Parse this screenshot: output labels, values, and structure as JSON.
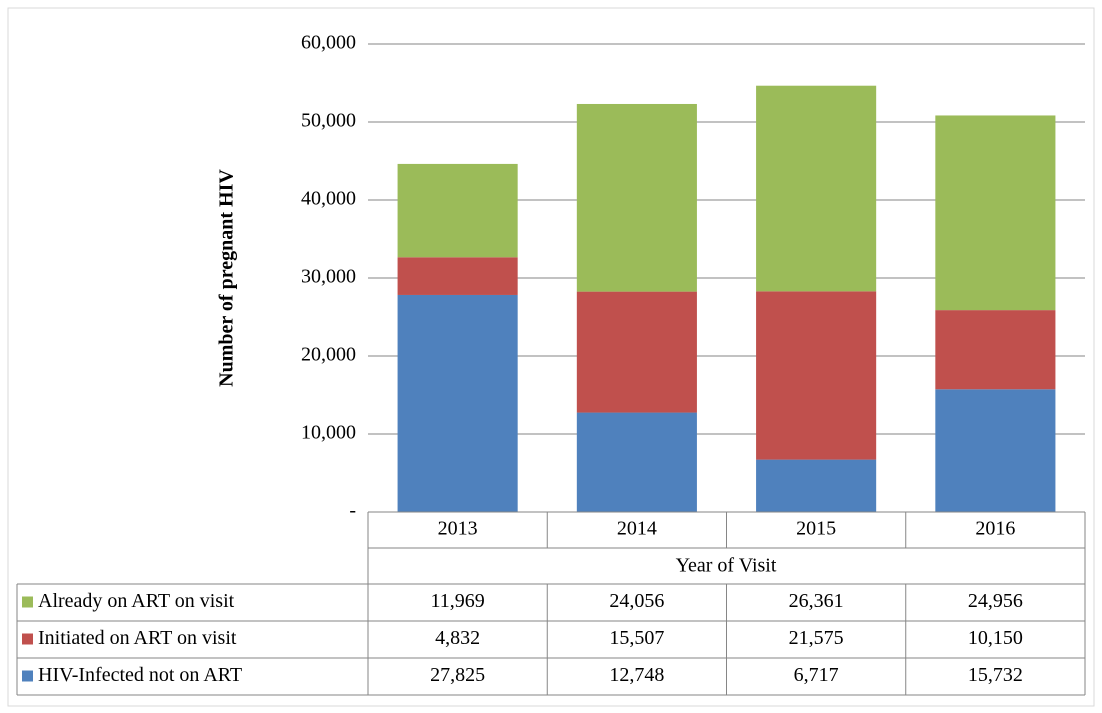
{
  "chart_data": {
    "type": "stacked_bar",
    "y_label": "Number of pregnant HIV",
    "x_label": "Year of Visit",
    "categories": [
      "2013",
      "2014",
      "2015",
      "2016"
    ],
    "series": [
      {
        "name": "HIV-Infected not on ART",
        "color": "#4f81bd",
        "values": [
          27825,
          12748,
          6717,
          15732
        ],
        "value_labels": [
          "27,825",
          "12,748",
          "6,717",
          "15,732"
        ]
      },
      {
        "name": "Initiated on ART on visit",
        "color": "#c0504d",
        "values": [
          4832,
          15507,
          21575,
          10150
        ],
        "value_labels": [
          "4,832",
          "15,507",
          "21,575",
          "10,150"
        ]
      },
      {
        "name": "Already on ART on visit",
        "color": "#9bbb59",
        "values": [
          11969,
          24056,
          26361,
          24956
        ],
        "value_labels": [
          "11,969",
          "24,056",
          "26,361",
          "24,956"
        ]
      }
    ],
    "ylim": [
      0,
      60000
    ],
    "yticks": [
      {
        "value": 0,
        "label": "-"
      },
      {
        "value": 10000,
        "label": "10,000"
      },
      {
        "value": 20000,
        "label": "20,000"
      },
      {
        "value": 30000,
        "label": "30,000"
      },
      {
        "value": 40000,
        "label": "40,000"
      },
      {
        "value": 50000,
        "label": "50,000"
      },
      {
        "value": 60000,
        "label": "60,000"
      }
    ],
    "grid": true
  }
}
